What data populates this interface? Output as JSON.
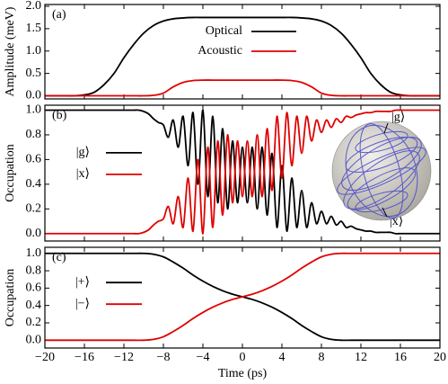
{
  "chart_data": [
    {
      "type": "line",
      "panel_label": "(a)",
      "ylabel": "Amplitude (meV)",
      "x": [
        -20,
        -19,
        -18,
        -17,
        -16,
        -15,
        -14,
        -13,
        -12,
        -11,
        -10,
        -9,
        -8,
        -7,
        -6,
        -5,
        -4,
        -3,
        -2,
        -1,
        0,
        1,
        2,
        3,
        4,
        5,
        6,
        7,
        8,
        9,
        10,
        11,
        12,
        13,
        14,
        15,
        16,
        17,
        18,
        19,
        20
      ],
      "series": [
        {
          "name": "Optical",
          "color": "#000000",
          "values": [
            0,
            0,
            0,
            0,
            0.02,
            0.08,
            0.25,
            0.5,
            0.85,
            1.15,
            1.4,
            1.57,
            1.67,
            1.72,
            1.74,
            1.75,
            1.75,
            1.75,
            1.75,
            1.75,
            1.75,
            1.75,
            1.75,
            1.75,
            1.75,
            1.75,
            1.74,
            1.72,
            1.67,
            1.57,
            1.4,
            1.15,
            0.85,
            0.5,
            0.25,
            0.08,
            0.02,
            0,
            0,
            0,
            0
          ]
        },
        {
          "name": "Acoustic",
          "color": "#e00000",
          "values": [
            0,
            0,
            0,
            0,
            0,
            0,
            0,
            0,
            0,
            0,
            0,
            0.01,
            0.06,
            0.2,
            0.3,
            0.34,
            0.35,
            0.35,
            0.35,
            0.35,
            0.35,
            0.35,
            0.35,
            0.35,
            0.35,
            0.34,
            0.3,
            0.2,
            0.06,
            0.01,
            0,
            0,
            0,
            0,
            0,
            0,
            0,
            0,
            0,
            0,
            0
          ]
        }
      ],
      "xlim": [
        -20,
        20
      ],
      "ylim": [
        -0.07,
        2.04
      ],
      "yticks": [
        {
          "value": 0,
          "label": "0.0"
        },
        {
          "value": 0.5,
          "label": "0.5"
        },
        {
          "value": 1,
          "label": "1.0"
        },
        {
          "value": 1.5,
          "label": "1.5"
        },
        {
          "value": 2,
          "label": "2.0"
        }
      ],
      "legend": "upper center"
    },
    {
      "type": "line",
      "panel_label": "(b)",
      "ylabel": "Occupation",
      "x": [
        -20,
        -19.5,
        -19,
        -18.5,
        -18,
        -17.5,
        -17,
        -16.5,
        -16,
        -15.5,
        -15,
        -14.5,
        -14,
        -13.5,
        -13,
        -12.5,
        -12,
        -11.5,
        -11,
        -10.5,
        -10,
        -9.5,
        -9,
        -8.5,
        -8,
        -7.5,
        -7,
        -6.5,
        -6,
        -5.5,
        -5,
        -4.5,
        -4,
        -3.5,
        -3,
        -2.5,
        -2,
        -1.5,
        -1,
        -0.5,
        0,
        0.5,
        1,
        1.5,
        2,
        2.5,
        3,
        3.5,
        4,
        4.5,
        5,
        5.5,
        6,
        6.5,
        7,
        7.5,
        8,
        8.5,
        9,
        9.5,
        10,
        10.5,
        11,
        11.5,
        12,
        12.5,
        13,
        13.5,
        14,
        14.5,
        15,
        15.5,
        16,
        16.5,
        17,
        17.5,
        18,
        18.5,
        19,
        19.5,
        20
      ],
      "series": [
        {
          "name": "|g⟩",
          "color": "#000000",
          "values": [
            1,
            1,
            1,
            1,
            1,
            1,
            1,
            1,
            1,
            1,
            1,
            1,
            1,
            1,
            1,
            1,
            1,
            1,
            1,
            1,
            0.99,
            0.97,
            0.93,
            0.9,
            0.88,
            0.78,
            0.92,
            0.7,
            0.95,
            0.55,
            0.98,
            0.4,
            1.0,
            0.3,
            0.95,
            0.25,
            0.85,
            0.2,
            0.75,
            0.25,
            0.7,
            0.25,
            0.7,
            0.2,
            0.7,
            0.15,
            0.65,
            0.05,
            0.55,
            0.02,
            0.45,
            0.05,
            0.35,
            0.05,
            0.25,
            0.08,
            0.18,
            0.08,
            0.14,
            0.07,
            0.1,
            0.05,
            0.06,
            0.04,
            0.03,
            0.02,
            0.02,
            0.01,
            0.01,
            0.01,
            0.01,
            0,
            0,
            0,
            0,
            0,
            0,
            0,
            0,
            0,
            0
          ]
        },
        {
          "name": "|x⟩",
          "color": "#e00000",
          "values": [
            0,
            0,
            0,
            0,
            0,
            0,
            0,
            0,
            0,
            0,
            0,
            0,
            0,
            0,
            0,
            0,
            0,
            0,
            0,
            0,
            0.01,
            0.03,
            0.07,
            0.1,
            0.12,
            0.22,
            0.08,
            0.3,
            0.05,
            0.45,
            0.02,
            0.6,
            0,
            0.7,
            0.05,
            0.75,
            0.15,
            0.8,
            0.25,
            0.75,
            0.3,
            0.75,
            0.3,
            0.8,
            0.3,
            0.85,
            0.35,
            0.95,
            0.45,
            0.98,
            0.55,
            0.95,
            0.65,
            0.95,
            0.75,
            0.92,
            0.82,
            0.92,
            0.86,
            0.93,
            0.9,
            0.95,
            0.94,
            0.96,
            0.97,
            0.98,
            0.98,
            0.99,
            0.99,
            0.99,
            0.99,
            1,
            1,
            1,
            1,
            1,
            1,
            1,
            1,
            1,
            1
          ]
        }
      ],
      "xlim": [
        -20,
        20
      ],
      "ylim": [
        -0.06,
        1.04
      ],
      "yticks": [
        {
          "value": 0,
          "label": "0.0"
        },
        {
          "value": 0.2,
          "label": "0.2"
        },
        {
          "value": 0.4,
          "label": "0.4"
        },
        {
          "value": 0.6,
          "label": "0.6"
        },
        {
          "value": 0.8,
          "label": "0.8"
        },
        {
          "value": 1,
          "label": "1.0"
        }
      ],
      "legend": "center left",
      "annotations": [
        "|g⟩",
        "|x⟩"
      ]
    },
    {
      "type": "line",
      "panel_label": "(c)",
      "ylabel": "Occupation",
      "xlabel": "Time (ps)",
      "x": [
        -20,
        -19,
        -18,
        -17,
        -16,
        -15,
        -14,
        -13,
        -12,
        -11,
        -10,
        -9,
        -8,
        -7,
        -6,
        -5,
        -4,
        -3,
        -2,
        -1,
        0,
        1,
        2,
        3,
        4,
        5,
        6,
        7,
        8,
        9,
        10,
        11,
        12,
        13,
        14,
        15,
        16,
        17,
        18,
        19,
        20
      ],
      "series": [
        {
          "name": "|+⟩",
          "color": "#000000",
          "values": [
            1,
            1,
            1,
            1,
            1,
            1,
            1,
            1,
            1,
            1,
            1,
            0.99,
            0.96,
            0.9,
            0.83,
            0.75,
            0.68,
            0.62,
            0.57,
            0.53,
            0.5,
            0.47,
            0.43,
            0.38,
            0.32,
            0.25,
            0.17,
            0.1,
            0.04,
            0.01,
            0,
            0,
            0,
            0,
            0,
            0,
            0,
            0,
            0,
            0,
            0
          ]
        },
        {
          "name": "|−⟩",
          "color": "#e00000",
          "values": [
            0,
            0,
            0,
            0,
            0,
            0,
            0,
            0,
            0,
            0,
            0,
            0.01,
            0.04,
            0.1,
            0.17,
            0.25,
            0.32,
            0.38,
            0.43,
            0.47,
            0.5,
            0.53,
            0.57,
            0.62,
            0.68,
            0.75,
            0.83,
            0.9,
            0.96,
            0.99,
            1,
            1,
            1,
            1,
            1,
            1,
            1,
            1,
            1,
            1,
            1
          ]
        }
      ],
      "xlim": [
        -20,
        20
      ],
      "ylim": [
        -0.09,
        1.07
      ],
      "xticks": [
        {
          "value": -20,
          "label": "−20"
        },
        {
          "value": -16,
          "label": "−16"
        },
        {
          "value": -12,
          "label": "−12"
        },
        {
          "value": -8,
          "label": "−8"
        },
        {
          "value": -4,
          "label": "−4"
        },
        0,
        4,
        8,
        12,
        16,
        20
      ],
      "yticks": [
        {
          "value": 0,
          "label": "0.0"
        },
        {
          "value": 0.2,
          "label": "0.2"
        },
        {
          "value": 0.4,
          "label": "0.4"
        },
        {
          "value": 0.6,
          "label": "0.6"
        },
        {
          "value": 0.8,
          "label": "0.8"
        },
        {
          "value": 1,
          "label": "1.0"
        }
      ],
      "legend": "center left"
    }
  ]
}
